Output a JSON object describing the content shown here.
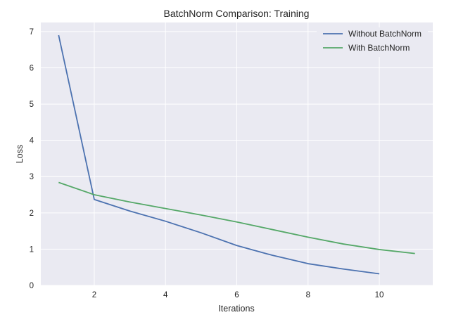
{
  "chart_data": {
    "type": "line",
    "title": "BatchNorm Comparison: Training",
    "xlabel": "Iterations",
    "ylabel": "Loss",
    "xlim": [
      0.5,
      11.5
    ],
    "ylim": [
      0,
      7.25
    ],
    "xticks": [
      2,
      4,
      6,
      8,
      10
    ],
    "yticks": [
      0,
      1,
      2,
      3,
      4,
      5,
      6,
      7
    ],
    "grid": true,
    "legend_position": "top-right",
    "series": [
      {
        "name": "Without BatchNorm",
        "color": "#4c72b0",
        "x": [
          1,
          2,
          3,
          4,
          5,
          6,
          7,
          8,
          9,
          10
        ],
        "y": [
          6.9,
          2.37,
          2.05,
          1.77,
          1.45,
          1.1,
          0.83,
          0.6,
          0.45,
          0.32
        ]
      },
      {
        "name": "With BatchNorm",
        "color": "#55a868",
        "x": [
          1,
          2,
          3,
          4,
          5,
          6,
          7,
          8,
          9,
          10,
          11
        ],
        "y": [
          2.84,
          2.5,
          2.3,
          2.12,
          1.94,
          1.75,
          1.54,
          1.33,
          1.14,
          0.99,
          0.88
        ]
      }
    ]
  }
}
